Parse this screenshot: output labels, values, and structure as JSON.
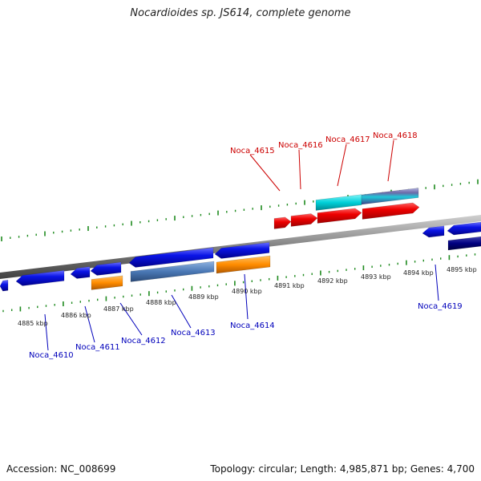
{
  "title": "Nocardioides sp. JS614, complete genome",
  "footer": {
    "accession": "Accession: NC_008699",
    "summary": "Topology: circular; Length: 4,985,871 bp; Genes: 4,700"
  },
  "colors": {
    "forward_strand": "#e8000b",
    "reverse_strand": "#0a14e6",
    "orange": "#ff8c00",
    "steelblue": "#4a78b5",
    "cyan": "#00d0d8",
    "slate": "#6a6aa8",
    "navy": "#000080",
    "tick": "#1e8a1e",
    "backbone": "#8a8a8a",
    "label_forward": "#cc0000",
    "label_reverse": "#0000bb"
  },
  "scale_labels": [
    {
      "text": "4885 kbp",
      "kbp": 4885
    },
    {
      "text": "4886 kbp",
      "kbp": 4886
    },
    {
      "text": "4887 kbp",
      "kbp": 4887
    },
    {
      "text": "4888 kbp",
      "kbp": 4888
    },
    {
      "text": "4889 kbp",
      "kbp": 4889
    },
    {
      "text": "4890 kbp",
      "kbp": 4890
    },
    {
      "text": "4891 kbp",
      "kbp": 4891
    },
    {
      "text": "4892 kbp",
      "kbp": 4892
    },
    {
      "text": "4893 kbp",
      "kbp": 4893
    },
    {
      "text": "4894 kbp",
      "kbp": 4894
    },
    {
      "text": "4895 kbp",
      "kbp": 4895
    }
  ],
  "gene_labels": [
    {
      "text": "Noca_4610",
      "strand": "reverse"
    },
    {
      "text": "Noca_4611",
      "strand": "reverse"
    },
    {
      "text": "Noca_4612",
      "strand": "reverse"
    },
    {
      "text": "Noca_4613",
      "strand": "reverse"
    },
    {
      "text": "Noca_4614",
      "strand": "reverse"
    },
    {
      "text": "Noca_4615",
      "strand": "forward"
    },
    {
      "text": "Noca_4616",
      "strand": "forward"
    },
    {
      "text": "Noca_4617",
      "strand": "forward"
    },
    {
      "text": "Noca_4618",
      "strand": "forward"
    },
    {
      "text": "Noca_4619",
      "strand": "reverse"
    }
  ]
}
